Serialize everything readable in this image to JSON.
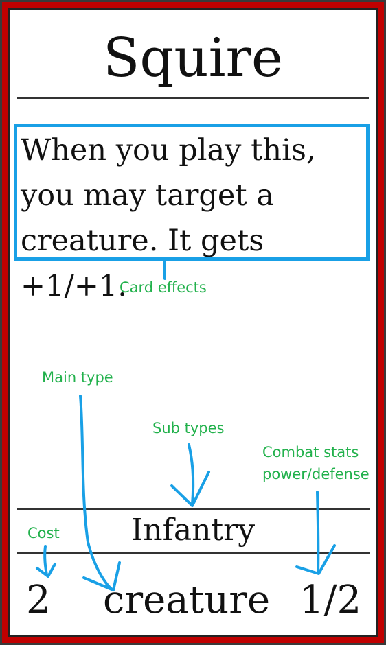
{
  "card": {
    "title": "Squire",
    "effect_lines": [
      "When you play this,",
      "you may target a",
      "creature. It gets +1/+1."
    ],
    "subtype": "Infantry",
    "cost": "2",
    "main_type": "creature",
    "combat_stats": "1/2",
    "frame_color": "#c00000"
  },
  "annotations": {
    "card_effects": "Card effects",
    "main_type": "Main type",
    "sub_types": "Sub types",
    "combat_stats_line1": "Combat stats",
    "combat_stats_line2": "power/defense",
    "cost": "Cost",
    "label_color": "#22b14c",
    "arrow_color": "#19a0e6"
  }
}
